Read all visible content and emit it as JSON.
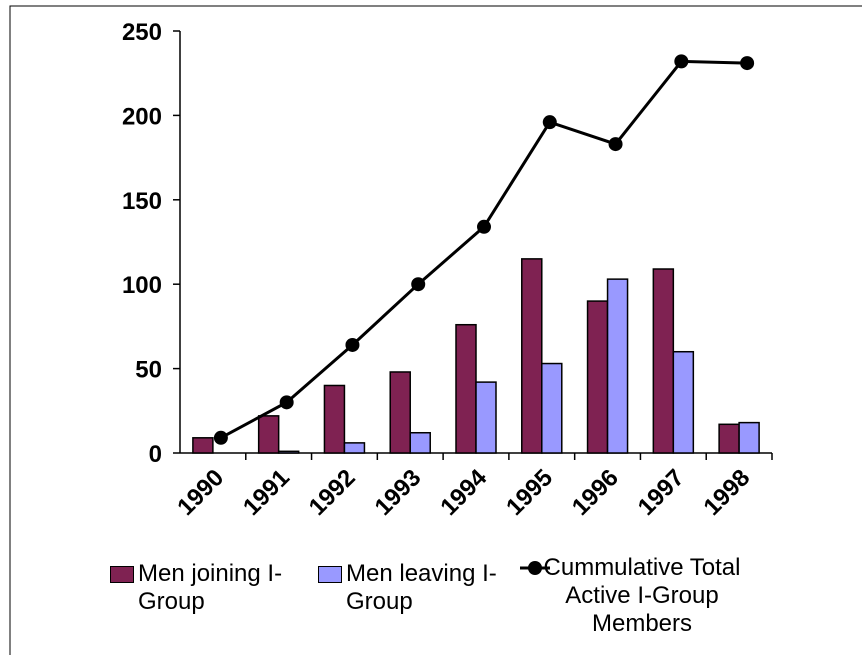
{
  "chart_data": {
    "type": "bar-line",
    "categories": [
      "1990",
      "1991",
      "1992",
      "1993",
      "1994",
      "1995",
      "1996",
      "1997",
      "1998"
    ],
    "series": [
      {
        "name": "Men joining I-Group",
        "type": "bar",
        "color": "#7f2252",
        "values": [
          9,
          22,
          40,
          48,
          76,
          115,
          90,
          109,
          17
        ]
      },
      {
        "name": "Men leaving I-Group",
        "type": "bar",
        "color": "#9999ff",
        "values": [
          0,
          1,
          6,
          12,
          42,
          53,
          103,
          60,
          18
        ]
      },
      {
        "name": "Cummulative Total Active I-Group Members",
        "type": "line",
        "color": "#000000",
        "values": [
          9,
          30,
          64,
          100,
          134,
          196,
          183,
          232,
          231
        ]
      }
    ],
    "ylim": [
      0,
      250
    ],
    "yticks": [
      0,
      50,
      100,
      150,
      200,
      250
    ]
  }
}
